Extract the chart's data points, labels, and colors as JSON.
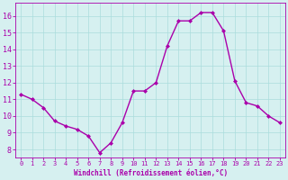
{
  "x": [
    0,
    1,
    2,
    3,
    4,
    5,
    6,
    7,
    8,
    9,
    10,
    11,
    12,
    13,
    14,
    15,
    16,
    17,
    18,
    19,
    20,
    21,
    22,
    23
  ],
  "y": [
    11.3,
    11.0,
    10.5,
    9.7,
    9.4,
    9.2,
    8.8,
    7.8,
    8.4,
    9.6,
    11.5,
    11.5,
    12.0,
    14.2,
    15.7,
    15.7,
    16.2,
    16.2,
    15.1,
    12.1,
    10.8,
    10.6,
    10.0,
    9.6
  ],
  "line_color": "#aa00aa",
  "marker": "D",
  "marker_size": 2,
  "bg_color": "#d6f0f0",
  "grid_color": "#aadddd",
  "xlabel": "Windchill (Refroidissement éolien,°C)",
  "xlabel_color": "#aa00aa",
  "tick_color": "#aa00aa",
  "ylim": [
    7.5,
    16.8
  ],
  "xlim": [
    -0.5,
    23.5
  ],
  "yticks": [
    8,
    9,
    10,
    11,
    12,
    13,
    14,
    15,
    16
  ],
  "xticks": [
    0,
    1,
    2,
    3,
    4,
    5,
    6,
    7,
    8,
    9,
    10,
    11,
    12,
    13,
    14,
    15,
    16,
    17,
    18,
    19,
    20,
    21,
    22,
    23
  ],
  "line_width": 1.0
}
